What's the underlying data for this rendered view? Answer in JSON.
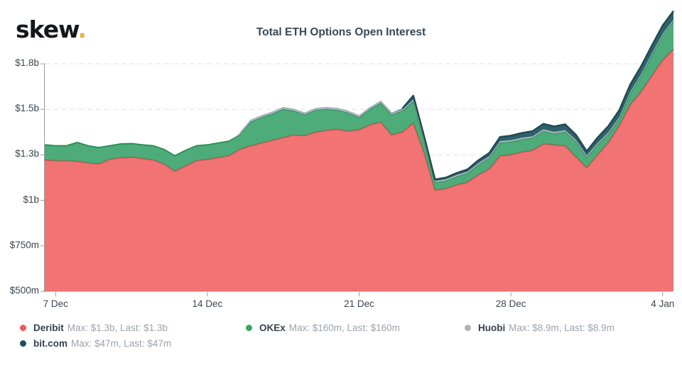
{
  "brand": {
    "logo_text": "skew",
    "logo_dot": "."
  },
  "title": "Total ETH Options Open Interest",
  "chart_data": {
    "type": "area",
    "stacked": true,
    "grid": "horizontal-dashed",
    "legend_position": "bottom-left",
    "points_per_day": 2,
    "x_tick_labels": [
      "7 Dec",
      "14 Dec",
      "21 Dec",
      "28 Dec",
      "4 Jan"
    ],
    "x_tick_indices": [
      1,
      15,
      29,
      43,
      57
    ],
    "y_unit": "million USD",
    "y_range": [
      500,
      1750
    ],
    "y_ticks": [
      {
        "value": 1750,
        "label": "$1.8b"
      },
      {
        "value": 1500,
        "label": "$1.5b"
      },
      {
        "value": 1250,
        "label": "$1.3b"
      },
      {
        "value": 1000,
        "label": "$1b"
      },
      {
        "value": 750,
        "label": "$750m"
      },
      {
        "value": 500,
        "label": "$500m"
      }
    ],
    "series": [
      {
        "name": "Deribit",
        "color": "#ee5a5a",
        "line_color": "#d84f4f",
        "max": "$1.3b",
        "last": "$1.3b",
        "values": [
          722,
          718,
          718,
          714,
          706,
          700,
          726,
          734,
          737,
          730,
          722,
          700,
          660,
          690,
          718,
          725,
          735,
          745,
          780,
          800,
          815,
          830,
          845,
          860,
          855,
          875,
          885,
          890,
          880,
          888,
          915,
          930,
          860,
          875,
          925,
          760,
          556,
          565,
          585,
          600,
          640,
          672,
          745,
          750,
          765,
          775,
          810,
          805,
          800,
          740,
          680,
          750,
          818,
          910,
          1025,
          1095,
          1185,
          1270,
          1330
        ]
      },
      {
        "name": "OKEx",
        "color": "#2f9e63",
        "line_color": "#2c8f58",
        "max": "$160m",
        "last": "$160m",
        "values": [
          83,
          82,
          82,
          104,
          94,
          90,
          74,
          76,
          75,
          75,
          78,
          80,
          85,
          85,
          82,
          80,
          80,
          80,
          81,
          131,
          141,
          146,
          156,
          131,
          116,
          121,
          116,
          106,
          101,
          68,
          86,
          106,
          111,
          116,
          121,
          66,
          42,
          42,
          46,
          49,
          56,
          61,
          72,
          72,
          70,
          68,
          71,
          62,
          77,
          83,
          57,
          56,
          47,
          38,
          61,
          89,
          112,
          135,
          154
        ]
      },
      {
        "name": "Huobi",
        "color": "#a9b4bd",
        "line_color": "#9fb0ba",
        "max": "$8.9m",
        "last": "$8.9m",
        "values": [
          0,
          0,
          0,
          0,
          0,
          0,
          0,
          0,
          0,
          0,
          0,
          0,
          0,
          0,
          0,
          0,
          0,
          0,
          9,
          9,
          9,
          9,
          9,
          9,
          9,
          9,
          9,
          9,
          9,
          9,
          9,
          9,
          9,
          9,
          9,
          9,
          9,
          9,
          9,
          9,
          9,
          9,
          9,
          9,
          9,
          9,
          9,
          9,
          9,
          9,
          9,
          9,
          9,
          9,
          9,
          9,
          9,
          9,
          9
        ]
      },
      {
        "name": "bit.com",
        "color": "#2e616b",
        "line_color": "#224b52",
        "max": "$47m",
        "last": "$47m",
        "values": [
          0,
          0,
          0,
          0,
          0,
          0,
          0,
          0,
          0,
          0,
          0,
          0,
          0,
          0,
          0,
          0,
          0,
          0,
          0,
          0,
          0,
          0,
          0,
          0,
          0,
          0,
          0,
          0,
          0,
          0,
          0,
          0,
          0,
          5,
          20,
          15,
          8,
          9,
          10,
          12,
          15,
          18,
          22,
          24,
          26,
          28,
          30,
          30,
          32,
          28,
          24,
          30,
          34,
          38,
          40,
          42,
          44,
          46,
          47
        ]
      }
    ]
  },
  "legend": {
    "items": [
      {
        "name": "Deribit",
        "detail": "Max: $1.3b, Last: $1.3b",
        "color": "#ee5a5a"
      },
      {
        "name": "OKEx",
        "detail": "Max: $160m, Last: $160m",
        "color": "#3aa566"
      },
      {
        "name": "Huobi",
        "detail": "Max: $8.9m, Last: $8.9m",
        "color": "#a9b4bd"
      },
      {
        "name": "bit.com",
        "detail": "Max: $47m, Last: $47m",
        "color": "#1f4d56"
      }
    ]
  }
}
